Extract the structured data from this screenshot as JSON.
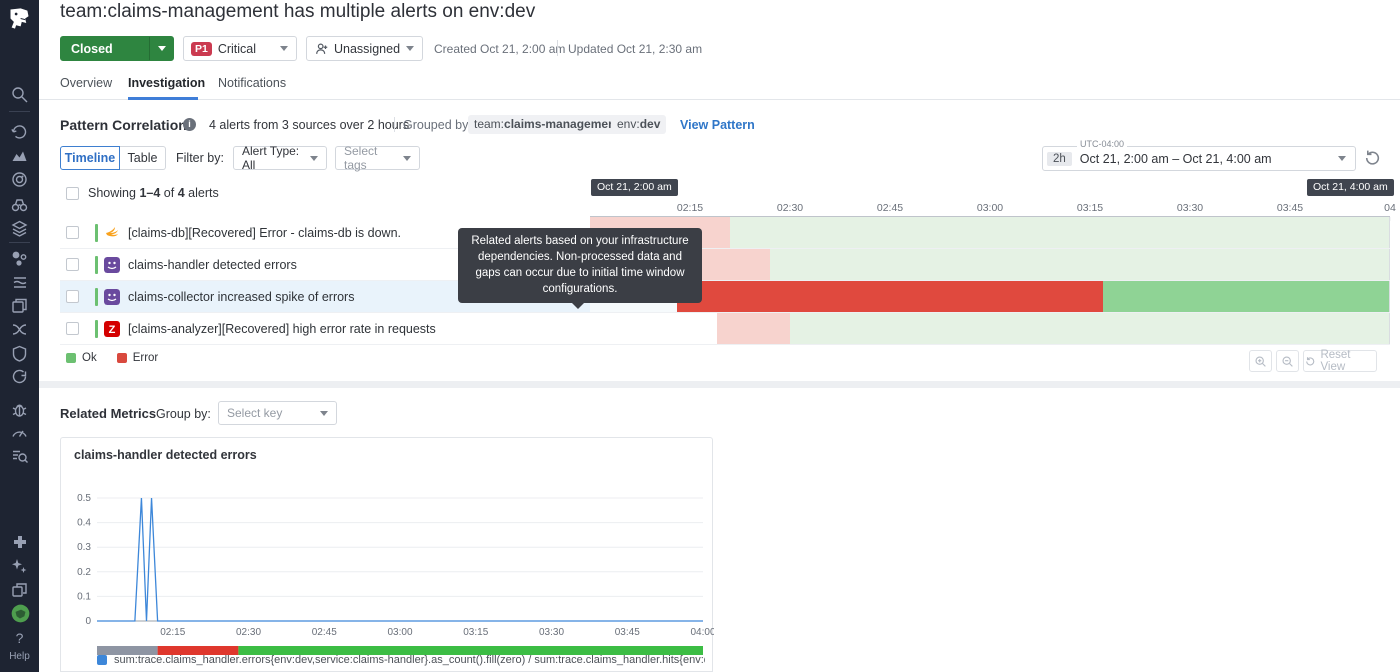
{
  "header": {
    "title": "team:claims-management has multiple alerts on env:dev",
    "status_label": "Closed",
    "severity_badge": "P1",
    "severity_label": "Critical",
    "assignee_label": "Unassigned",
    "created": "Created Oct 21, 2:00 am",
    "updated": "Updated Oct 21, 2:30 am",
    "tabs": [
      {
        "label": "Overview"
      },
      {
        "label": "Investigation"
      },
      {
        "label": "Notifications"
      }
    ]
  },
  "pattern": {
    "heading": "Pattern Correlation",
    "summary": "4 alerts from 3 sources over 2 hours",
    "grouped_by_label": "Grouped by",
    "group_tags": [
      {
        "prefix": "team:",
        "value": "claims-management"
      },
      {
        "prefix": "env:",
        "value": "dev"
      }
    ],
    "view_pattern_label": "View Pattern",
    "toggle_timeline": "Timeline",
    "toggle_table": "Table",
    "filter_by_label": "Filter by:",
    "alert_type_dropdown": "Alert Type: All",
    "tags_dropdown": "Select tags",
    "timerange": {
      "span": "2h",
      "label": "Oct 21, 2:00 am – Oct 21, 4:00 am",
      "timezone": "UTC-04:00"
    },
    "showing": {
      "p1": "Showing",
      "bold1": "1–4",
      "p2": "of",
      "bold2": "4",
      "p3": "alerts"
    },
    "tooltip": "Related alerts based on your infrastructure dependencies. Non-processed data and gaps can occur due to initial time window configurations.",
    "legend": [
      {
        "label": "Ok",
        "color": "#6cc071"
      },
      {
        "label": "Error",
        "color": "#d9493e"
      }
    ],
    "reset_view_label": "Reset View"
  },
  "alerts": [
    {
      "label": "[claims-db][Recovered] Error - claims-db is down.",
      "source_icon": "solarwinds-icon",
      "selected": false
    },
    {
      "label": "claims-handler detected errors",
      "source_icon": "purple-mascot-icon",
      "selected": false
    },
    {
      "label": "claims-collector increased spike of errors",
      "source_icon": "purple-mascot-icon",
      "selected": true
    },
    {
      "label": "[claims-analyzer][Recovered] high error rate in requests",
      "source_icon": "zabbix-icon",
      "selected": false
    }
  ],
  "timeline": {
    "start_badge": "Oct 21, 2:00 am",
    "end_badge": "Oct 21, 4:00 am",
    "window_minutes": 120,
    "ticks": [
      {
        "m": 15,
        "label": "02:15"
      },
      {
        "m": 30,
        "label": "02:30"
      },
      {
        "m": 45,
        "label": "02:45"
      },
      {
        "m": 60,
        "label": "03:00"
      },
      {
        "m": 75,
        "label": "03:15"
      },
      {
        "m": 90,
        "label": "03:30"
      },
      {
        "m": 105,
        "label": "03:45"
      },
      {
        "m": 120,
        "label": "04"
      }
    ],
    "rows": [
      {
        "segments": [
          {
            "from": 0,
            "to": 21,
            "state": "error"
          },
          {
            "from": 21,
            "to": 120,
            "state": "ok"
          }
        ]
      },
      {
        "segments": [
          {
            "from": 0,
            "to": 27,
            "state": "error"
          },
          {
            "from": 27,
            "to": 120,
            "state": "ok"
          }
        ]
      },
      {
        "segments": [
          {
            "from": 13,
            "to": 77,
            "state": "error"
          },
          {
            "from": 77,
            "to": 120,
            "state": "ok"
          }
        ]
      },
      {
        "segments": [
          {
            "from": 19,
            "to": 30,
            "state": "error"
          },
          {
            "from": 30,
            "to": 120,
            "state": "ok"
          }
        ]
      }
    ]
  },
  "related_metrics": {
    "heading": "Related Metrics",
    "group_by_label": "Group by:",
    "group_by_placeholder": "Select key"
  },
  "chart_data": {
    "type": "line",
    "title": "claims-handler detected errors",
    "xlabel": "",
    "ylabel": "",
    "ylim": [
      0,
      0.5
    ],
    "y_ticks": [
      0,
      0.1,
      0.2,
      0.3,
      0.4,
      0.5
    ],
    "x_ticks": [
      "02:15",
      "02:30",
      "02:45",
      "03:00",
      "03:15",
      "03:30",
      "03:45",
      "04:00"
    ],
    "x_window_minutes": 120,
    "grid": "horizontal-only",
    "legend_position": "bottom",
    "series": [
      {
        "name": "sum:trace.claims_handler.errors{env:dev,service:claims-handler}.as_count().fill(zero) / sum:trace.claims_handler.hits{env:dev,serv...",
        "color": "#3d87d9",
        "x_minutes": [
          0,
          7.5,
          8.8,
          9.8,
          10.8,
          12,
          120
        ],
        "y": [
          0,
          0,
          0.5,
          0,
          0.5,
          0,
          0
        ]
      }
    ],
    "status_strip": [
      {
        "from": 0,
        "to": 12,
        "state": "no-data",
        "color": "#8e95a3"
      },
      {
        "from": 12,
        "to": 28,
        "state": "error",
        "color": "#df372d"
      },
      {
        "from": 28,
        "to": 120,
        "state": "ok",
        "color": "#3cbd44"
      }
    ]
  },
  "sidebar": {
    "icons": [
      "datadog-logo",
      "search",
      "recents-history",
      "dashboards",
      "watchdog-target",
      "investigator-binoculars",
      "infrastructure-layers",
      "service-map-dots",
      "pipelines-stream",
      "software-catalog-windows",
      "apm-link",
      "security-shield",
      "synthetics-rotate",
      "error-tracking-bug",
      "slo-gauge",
      "log-search",
      "integrations-puzzle",
      "ai-sparkle",
      "workspaces-copy",
      "org-globe",
      "help"
    ],
    "help_label": "Help"
  },
  "colors": {
    "accent_blue": "#2f76c8",
    "status_closed_green": "#2e8540",
    "severity_red": "#cb3a50",
    "timeline_error_muted": "#f7d3ce",
    "timeline_ok_muted": "#e5f2e4",
    "timeline_error_selected": "#e0493e",
    "timeline_ok_selected": "#8fd395",
    "sidebar_bg": "#1e2432"
  }
}
